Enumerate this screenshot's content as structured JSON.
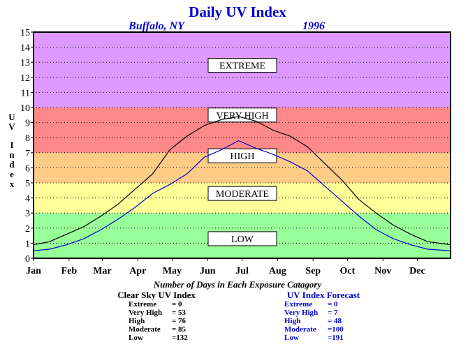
{
  "chart_data": {
    "type": "line",
    "title": "Daily UV Index",
    "subtitle_location": "Buffalo, NY",
    "subtitle_year": "1996",
    "ylabel": "UV Index",
    "ylim": [
      0,
      15
    ],
    "yticks": [
      "0",
      "1",
      "2",
      "3",
      "4",
      "5",
      "6",
      "7",
      "8",
      "9",
      "10",
      "11",
      "12",
      "13",
      "14",
      "15"
    ],
    "month_labels": [
      "Jan",
      "Feb",
      "Mar",
      "Apr",
      "May",
      "Jun",
      "Jul",
      "Aug",
      "Sep",
      "Oct",
      "Nov",
      "Dec"
    ],
    "grid": true,
    "bands": [
      {
        "label": "LOW",
        "from": 0,
        "to": 3,
        "color": "#99ff99"
      },
      {
        "label": "MODERATE",
        "from": 3,
        "to": 5,
        "color": "#ffff99"
      },
      {
        "label": "HIGH",
        "from": 5,
        "to": 7,
        "color": "#ffcc88"
      },
      {
        "label": "VERY HIGH",
        "from": 7,
        "to": 10,
        "color": "#ff8888"
      },
      {
        "label": "EXTREME",
        "from": 10,
        "to": 15,
        "color": "#dd99ff"
      }
    ],
    "series": [
      {
        "name": "Clear Sky UV Index",
        "color": "#000000",
        "x": [
          1,
          15,
          30,
          45,
          60,
          75,
          90,
          105,
          120,
          135,
          150,
          165,
          180,
          195,
          210,
          225,
          240,
          255,
          270,
          285,
          300,
          315,
          330,
          345,
          365
        ],
        "values": [
          0.9,
          1.1,
          1.6,
          2.1,
          2.8,
          3.6,
          4.6,
          5.6,
          7.2,
          8.1,
          8.8,
          9.2,
          9.4,
          9.1,
          8.5,
          8.1,
          7.4,
          6.3,
          5.2,
          3.9,
          3.0,
          2.2,
          1.6,
          1.1,
          0.9
        ]
      },
      {
        "name": "UV Index Forecast",
        "color": "#0000cc",
        "x": [
          1,
          15,
          30,
          45,
          60,
          75,
          90,
          105,
          120,
          135,
          150,
          165,
          180,
          195,
          210,
          225,
          240,
          255,
          270,
          285,
          300,
          315,
          330,
          345,
          365
        ],
        "values": [
          0.5,
          0.6,
          0.9,
          1.3,
          1.9,
          2.6,
          3.4,
          4.3,
          4.9,
          5.6,
          6.7,
          7.2,
          7.8,
          7.3,
          6.9,
          6.4,
          5.8,
          4.8,
          3.8,
          2.8,
          1.9,
          1.3,
          0.9,
          0.6,
          0.5
        ]
      }
    ]
  },
  "summary": {
    "heading": "Number of Days in Each Exposure Catagory",
    "clear_sky": {
      "title": "Clear Sky UV Index",
      "rows": [
        {
          "label": "Extreme",
          "value": "=    0"
        },
        {
          "label": "Very High",
          "value": "=  53"
        },
        {
          "label": "High",
          "value": "=  76"
        },
        {
          "label": "Moderate",
          "value": "=  85"
        },
        {
          "label": "Low",
          "value": "=132"
        }
      ]
    },
    "forecast": {
      "title": "UV Index Forecast",
      "rows": [
        {
          "label": "Extreme",
          "value": "=    0"
        },
        {
          "label": "Very High",
          "value": "=    7"
        },
        {
          "label": "High",
          "value": "=  48"
        },
        {
          "label": "Moderate",
          "value": "=100"
        },
        {
          "label": "Low",
          "value": "=191"
        }
      ]
    }
  },
  "colors": {
    "title": "#0000cc",
    "forecast": "#0000cc",
    "clear_sky": "#000000"
  }
}
